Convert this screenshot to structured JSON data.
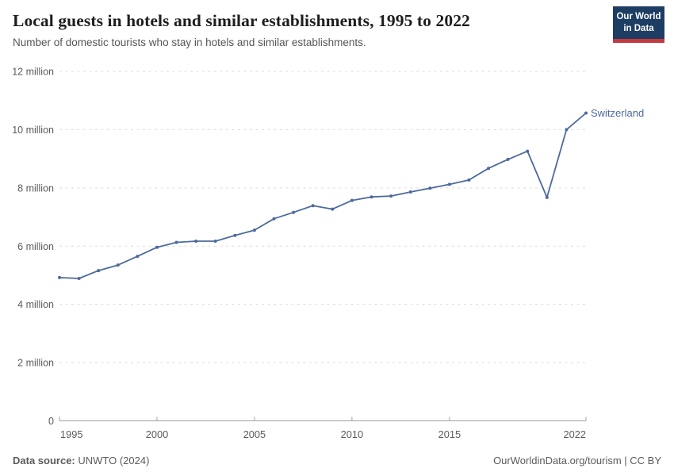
{
  "header": {
    "title": "Local guests in hotels and similar establishments, 1995 to 2022",
    "subtitle": "Number of domestic tourists who stay in hotels and similar establishments."
  },
  "logo": {
    "line1": "Our World",
    "line2": "in Data",
    "bg_color": "#1d3d63",
    "accent_color": "#c43a3f"
  },
  "chart_data": {
    "type": "line",
    "title": "Local guests in hotels and similar establishments, 1995 to 2022",
    "subtitle": "Number of domestic tourists who stay in hotels and similar establishments.",
    "unit": "million guests",
    "xlim": [
      1995,
      2022
    ],
    "ylim": [
      0,
      12
    ],
    "grid": "dashed-horizontal",
    "legend": "end-of-line-label",
    "x": [
      1995,
      1996,
      1997,
      1998,
      1999,
      2000,
      2001,
      2002,
      2003,
      2004,
      2005,
      2006,
      2007,
      2008,
      2009,
      2010,
      2011,
      2012,
      2013,
      2014,
      2015,
      2016,
      2017,
      2018,
      2019,
      2020,
      2021,
      2022
    ],
    "series": [
      {
        "name": "Switzerland",
        "color": "#4c6a9c",
        "values": [
          4.92,
          4.89,
          5.16,
          5.35,
          5.65,
          5.96,
          6.13,
          6.17,
          6.17,
          6.37,
          6.55,
          6.94,
          7.16,
          7.39,
          7.27,
          7.57,
          7.69,
          7.72,
          7.86,
          7.99,
          8.12,
          8.27,
          8.67,
          8.98,
          9.26,
          7.67,
          10.0,
          10.57
        ]
      }
    ],
    "y_ticks": [
      {
        "value": 0,
        "label": "0"
      },
      {
        "value": 2,
        "label": "2 million"
      },
      {
        "value": 4,
        "label": "4 million"
      },
      {
        "value": 6,
        "label": "6 million"
      },
      {
        "value": 8,
        "label": "8 million"
      },
      {
        "value": 10,
        "label": "10 million"
      },
      {
        "value": 12,
        "label": "12 million"
      }
    ],
    "x_ticks": [
      {
        "value": 1995,
        "label": "1995"
      },
      {
        "value": 2000,
        "label": "2000"
      },
      {
        "value": 2005,
        "label": "2005"
      },
      {
        "value": 2010,
        "label": "2010"
      },
      {
        "value": 2015,
        "label": "2015"
      },
      {
        "value": 2022,
        "label": "2022"
      }
    ],
    "colors": {
      "gridline": "#dcdcdc",
      "axis": "#a1a1a1",
      "tick_label": "#5b5b5b"
    }
  },
  "footer": {
    "source_label": "Data source:",
    "source_value": " UNWTO (2024)",
    "right": "OurWorldinData.org/tourism | CC BY"
  }
}
